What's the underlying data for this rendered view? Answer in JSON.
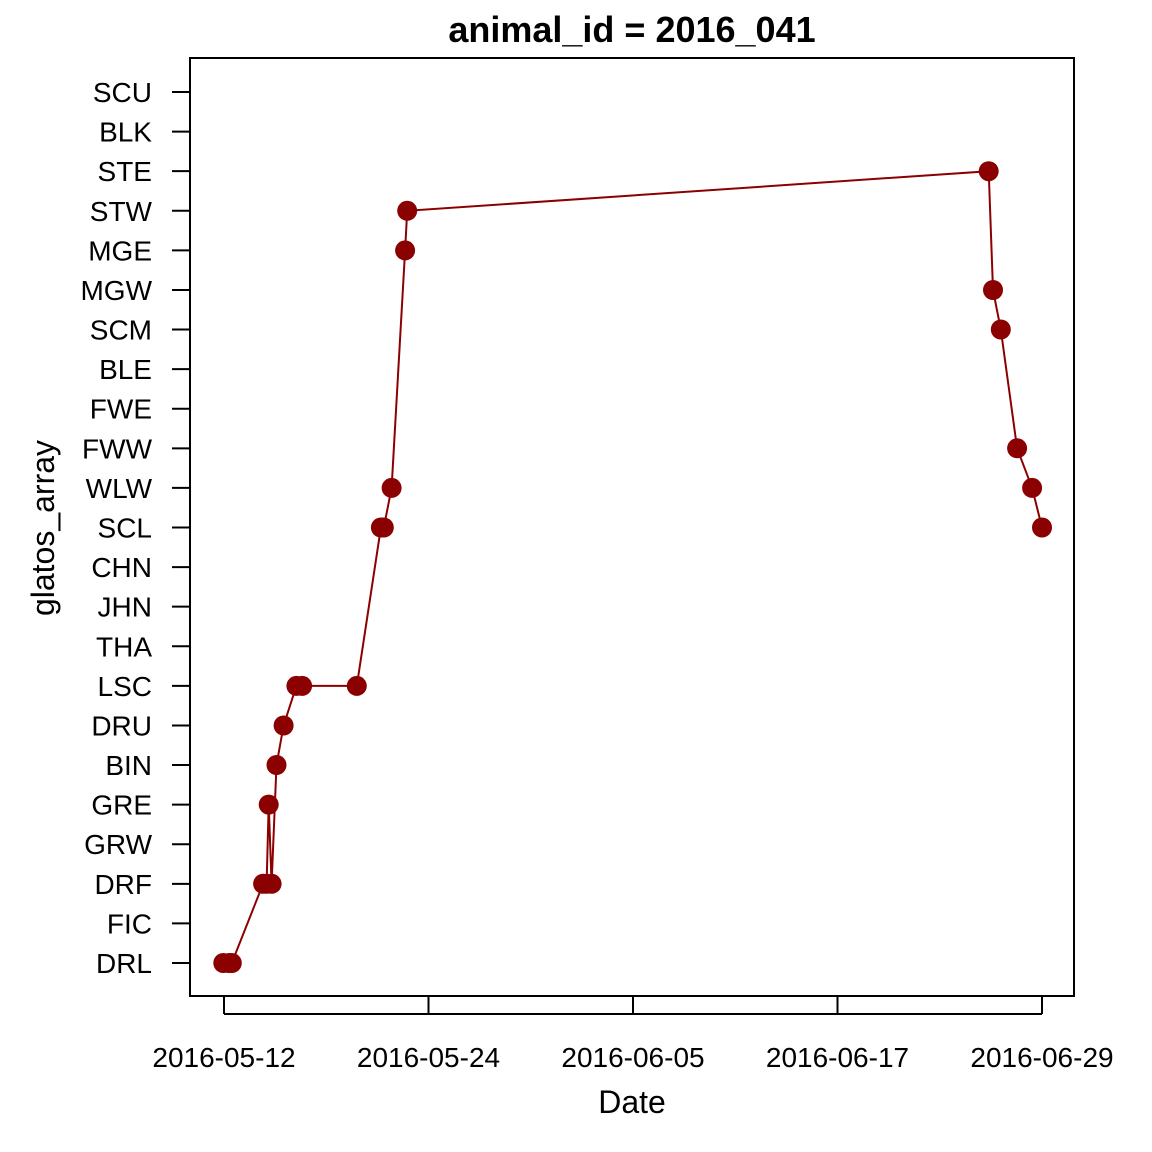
{
  "chart_data": {
    "type": "line",
    "title": "animal_id = 2016_041",
    "xlabel": "Date",
    "ylabel": "glatos_array",
    "x_ticks": [
      "2016-05-12",
      "2016-05-24",
      "2016-06-05",
      "2016-06-17",
      "2016-06-29"
    ],
    "y_categories": [
      "DRL",
      "FIC",
      "DRF",
      "GRW",
      "GRE",
      "BIN",
      "DRU",
      "LSC",
      "THA",
      "JHN",
      "CHN",
      "SCL",
      "WLW",
      "FWW",
      "FWE",
      "BLE",
      "SCM",
      "MGW",
      "MGE",
      "STW",
      "STE",
      "BLK",
      "SCU"
    ],
    "xlim": [
      "2016-05-11",
      "2016-07-01"
    ],
    "grid": false,
    "color": "#8B0000",
    "series": [
      {
        "points": [
          {
            "x": "2016-05-11 23:00",
            "y": "DRL"
          },
          {
            "x": "2016-05-12 07:00",
            "y": "DRL"
          },
          {
            "x": "2016-05-12 11:00",
            "y": "DRL"
          },
          {
            "x": "2016-05-14 07:00",
            "y": "DRF"
          },
          {
            "x": "2016-05-14 12:00",
            "y": "DRF"
          },
          {
            "x": "2016-05-14 15:00",
            "y": "GRE"
          },
          {
            "x": "2016-05-14 19:00",
            "y": "DRF"
          },
          {
            "x": "2016-05-15 02:00",
            "y": "BIN"
          },
          {
            "x": "2016-05-15 12:00",
            "y": "DRU"
          },
          {
            "x": "2016-05-16 06:00",
            "y": "LSC"
          },
          {
            "x": "2016-05-16 14:00",
            "y": "LSC"
          },
          {
            "x": "2016-05-19 19:00",
            "y": "LSC"
          },
          {
            "x": "2016-05-21 05:00",
            "y": "SCL"
          },
          {
            "x": "2016-05-21 09:00",
            "y": "SCL"
          },
          {
            "x": "2016-05-21 20:00",
            "y": "WLW"
          },
          {
            "x": "2016-05-22 15:00",
            "y": "MGE"
          },
          {
            "x": "2016-05-22 18:00",
            "y": "STW"
          },
          {
            "x": "2016-06-25 21:00",
            "y": "STE"
          },
          {
            "x": "2016-06-26 03:00",
            "y": "MGW"
          },
          {
            "x": "2016-06-26 14:00",
            "y": "SCM"
          },
          {
            "x": "2016-06-27 13:00",
            "y": "FWW"
          },
          {
            "x": "2016-06-28 10:00",
            "y": "WLW"
          },
          {
            "x": "2016-06-29 00:00",
            "y": "SCL"
          }
        ]
      }
    ]
  }
}
